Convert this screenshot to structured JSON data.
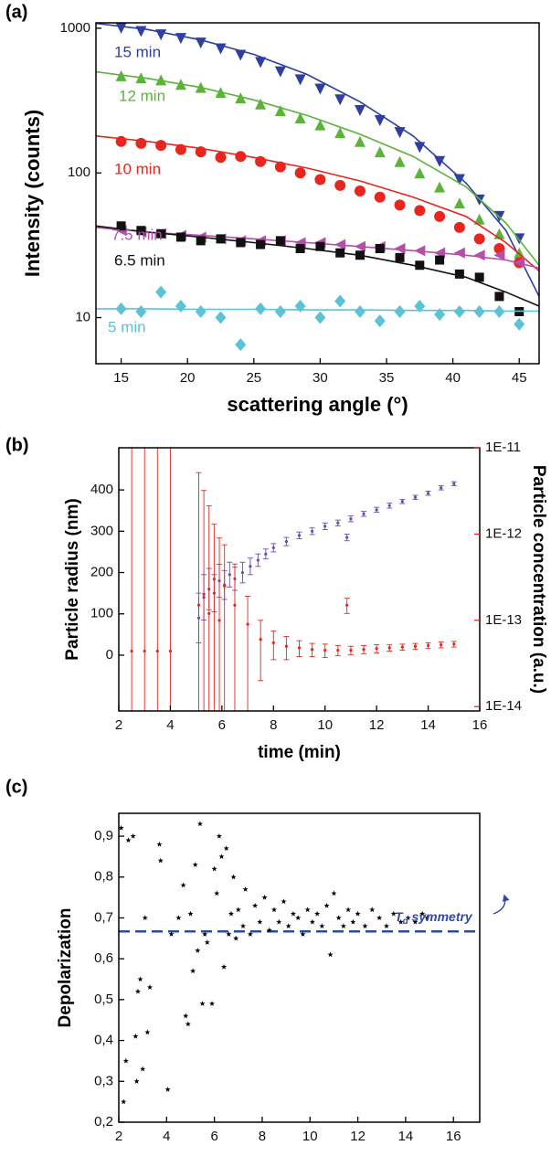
{
  "chart_data": [
    {
      "type": "scatter",
      "panel": "(a)",
      "xlabel": "scattering angle (°)",
      "ylabel": "Intensity (counts)",
      "xlim": [
        13.1,
        46.5
      ],
      "xticks": [
        15,
        20,
        25,
        30,
        35,
        40,
        45
      ],
      "ylim": [
        4.8,
        1090
      ],
      "ylog": true,
      "yticks": [
        10,
        100,
        1000
      ],
      "x": [
        15,
        16.5,
        18,
        19.5,
        21,
        22.5,
        24,
        25.5,
        27,
        28.5,
        30,
        31.5,
        33,
        34.5,
        36,
        37.5,
        39,
        40.5,
        42,
        43.5,
        45
      ],
      "fit_x": [
        13.1,
        17,
        21,
        25,
        29,
        33,
        37,
        41,
        44,
        46.5
      ],
      "series": [
        {
          "name": "15 min",
          "color": "#2f3f9f",
          "marker": "triangle-down",
          "values": [
            1000,
            950,
            900,
            850,
            790,
            720,
            650,
            580,
            500,
            440,
            380,
            320,
            270,
            230,
            190,
            150,
            120,
            90,
            65,
            50,
            35
          ],
          "fit": [
            1080,
            980,
            830,
            660,
            480,
            310,
            180,
            85,
            40,
            14
          ]
        },
        {
          "name": "12 min",
          "color": "#5bb33a",
          "marker": "triangle-up",
          "values": [
            470,
            455,
            440,
            410,
            390,
            360,
            330,
            300,
            270,
            240,
            215,
            190,
            165,
            140,
            120,
            100,
            80,
            62,
            48,
            38,
            28
          ],
          "fit": [
            500,
            450,
            390,
            320,
            250,
            185,
            130,
            80,
            45,
            23
          ]
        },
        {
          "name": "10 min",
          "color": "#e8261e",
          "marker": "circle",
          "values": [
            165,
            160,
            155,
            145,
            140,
            128,
            130,
            120,
            110,
            100,
            90,
            82,
            75,
            68,
            60,
            55,
            50,
            42,
            35,
            30,
            24
          ],
          "fit": [
            180,
            165,
            148,
            128,
            108,
            88,
            68,
            50,
            33,
            21
          ]
        },
        {
          "name": "7.5 min",
          "color": "#b54ea8",
          "marker": "triangle-left",
          "values": [
            40,
            39,
            38,
            37,
            36,
            35,
            34,
            34,
            34,
            33,
            33,
            32,
            31,
            31,
            30,
            29,
            28,
            28,
            27,
            27,
            24
          ],
          "fit": [
            42,
            39,
            37,
            35,
            33,
            31,
            29,
            27,
            25,
            22
          ]
        },
        {
          "name": "6.5 min",
          "color": "#111111",
          "marker": "square",
          "values": [
            43,
            40,
            38,
            36,
            34,
            35,
            33,
            32,
            34,
            30,
            31,
            28,
            27,
            30,
            26,
            23,
            25,
            20,
            19,
            14,
            11
          ],
          "fit": [
            43,
            39,
            36,
            33,
            30,
            27,
            23,
            19,
            15,
            12
          ]
        },
        {
          "name": "5 min",
          "color": "#5cc3d6",
          "marker": "diamond",
          "values": [
            11.5,
            11,
            15,
            12,
            11,
            10,
            6.5,
            11.5,
            11,
            12,
            10,
            13,
            11,
            9.5,
            11,
            12,
            10.5,
            11,
            11,
            11,
            9
          ],
          "fit": [
            11.5,
            11.5,
            11.4,
            11.4,
            11.3,
            11.3,
            11.2,
            11.2,
            11.1,
            11.1
          ]
        }
      ]
    },
    {
      "type": "errorbar",
      "panel": "(b)",
      "xlabel": "time (min)",
      "ylabel": "Particle radius (nm)",
      "y2label": "Particle concentration (a.u.)",
      "xlim": [
        2,
        16
      ],
      "xticks": [
        2,
        4,
        6,
        8,
        10,
        12,
        14,
        16
      ],
      "ylim": [
        -135,
        502
      ],
      "yticks": [
        0,
        100,
        200,
        300,
        400
      ],
      "y2lim": [
        8.9e-15,
        1e-11
      ],
      "y2log": true,
      "y2ticks": [
        {
          "value": 1e-14,
          "label": "1E-14"
        },
        {
          "value": 1e-13,
          "label": "1E-13"
        },
        {
          "value": 1e-12,
          "label": "1E-12"
        },
        {
          "value": 1e-11,
          "label": "1E-11"
        }
      ],
      "series": [
        {
          "color": "#6a4bb5",
          "axis": "y",
          "x": [
            5.1,
            5.3,
            5.5,
            5.7,
            5.9,
            6.1,
            6.3,
            6.5,
            6.8,
            7.1,
            7.4,
            7.7,
            8,
            8.5,
            9,
            9.5,
            10,
            10.5,
            10.85,
            11,
            11.5,
            12,
            12.5,
            13,
            13.5,
            14,
            14.5,
            15
          ],
          "values": [
            90,
            140,
            160,
            150,
            180,
            170,
            195,
            185,
            200,
            215,
            230,
            245,
            260,
            275,
            290,
            300,
            312,
            320,
            285,
            330,
            342,
            352,
            362,
            372,
            382,
            392,
            405,
            415
          ],
          "errors": [
            60,
            55,
            50,
            45,
            40,
            35,
            30,
            28,
            25,
            20,
            15,
            12,
            10,
            10,
            8,
            8,
            8,
            7,
            8,
            7,
            6,
            6,
            6,
            5,
            5,
            5,
            5,
            5
          ]
        },
        {
          "color": "#e8261e",
          "axis": "y2",
          "x": [
            2.5,
            3,
            3.5,
            4,
            5.1,
            5.3,
            5.5,
            5.7,
            5.9,
            6.1,
            6.5,
            7,
            7.5,
            8,
            8.5,
            9,
            9.5,
            10,
            10.5,
            10.85,
            11,
            11.5,
            12,
            12.5,
            13,
            13.5,
            14,
            14.5,
            15
          ],
          "values": [
            4.4e-14,
            4.4e-14,
            4.4e-14,
            4.4e-14,
            1.5e-13,
            2e-13,
            1.2e-13,
            3e-13,
            1e-13,
            2.5e-13,
            1.5e-13,
            9e-14,
            6e-14,
            5.5e-14,
            5e-14,
            4.8e-14,
            4.6e-14,
            4.5e-14,
            4.5e-14,
            1.5e-13,
            4.5e-14,
            4.6e-14,
            4.7e-14,
            4.8e-14,
            4.9e-14,
            5e-14,
            5.1e-14,
            5.2e-14,
            5.3e-14
          ],
          "errors": [
            1e-11,
            1e-11,
            1e-11,
            1e-11,
            5e-12,
            3e-12,
            2e-12,
            1e-12,
            8e-13,
            5e-13,
            3e-13,
            1e-13,
            4e-14,
            2e-14,
            1.5e-14,
            1e-14,
            8e-15,
            8e-15,
            6e-15,
            3e-14,
            5e-15,
            5e-15,
            5e-15,
            4e-15,
            4e-15,
            4e-15,
            4e-15,
            4e-15,
            4e-15
          ]
        }
      ]
    },
    {
      "type": "scatter",
      "panel": "(c)",
      "xlabel": "time (min)",
      "ylabel": "Depolarization",
      "xlim": [
        2,
        17.1
      ],
      "xticks": [
        2,
        4,
        6,
        8,
        10,
        12,
        14,
        16
      ],
      "ylim": [
        0.2,
        0.956
      ],
      "yticks": [
        {
          "value": 0.2,
          "label": "0,2"
        },
        {
          "value": 0.3,
          "label": "0,3"
        },
        {
          "value": 0.4,
          "label": "0,4"
        },
        {
          "value": 0.5,
          "label": "0,5"
        },
        {
          "value": 0.6,
          "label": "0,6"
        },
        {
          "value": 0.7,
          "label": "0,7"
        },
        {
          "value": 0.8,
          "label": "0,8"
        },
        {
          "value": 0.9,
          "label": "0,9"
        }
      ],
      "hline": {
        "value": 0.667,
        "color": "#2f4aa0",
        "text": "T",
        "subscript": "d",
        "suffix": " symmetry"
      },
      "x": [
        2.1,
        2.2,
        2.3,
        2.4,
        2.6,
        2.7,
        2.75,
        2.8,
        2.9,
        3,
        3.1,
        3.2,
        3.3,
        3.7,
        3.75,
        4.05,
        4.2,
        4.5,
        4.7,
        4.8,
        4.9,
        5,
        5.1,
        5.2,
        5.3,
        5.4,
        5.5,
        5.6,
        5.7,
        5.8,
        5.9,
        6,
        6.1,
        6.2,
        6.3,
        6.4,
        6.5,
        6.6,
        6.7,
        6.8,
        6.9,
        7,
        7.2,
        7.3,
        7.5,
        7.7,
        7.9,
        8.1,
        8.3,
        8.5,
        8.7,
        8.9,
        9.1,
        9.3,
        9.5,
        9.7,
        9.9,
        10.1,
        10.3,
        10.5,
        10.7,
        10.85,
        11,
        11.2,
        11.4,
        11.6,
        11.8,
        12,
        12.3,
        12.6,
        12.9,
        13.2,
        13.5,
        13.8,
        14.1,
        14.4,
        14.7,
        14.9
      ],
      "series": [
        {
          "color": "#000000",
          "marker": "star",
          "values": [
            0.92,
            0.25,
            0.35,
            0.89,
            0.9,
            0.41,
            0.3,
            0.52,
            0.55,
            0.33,
            0.7,
            0.42,
            0.53,
            0.88,
            0.84,
            0.28,
            0.66,
            0.7,
            0.78,
            0.46,
            0.44,
            0.71,
            0.57,
            0.83,
            0.62,
            0.93,
            0.49,
            0.66,
            0.64,
            0.96,
            0.49,
            0.82,
            0.76,
            0.9,
            0.85,
            0.58,
            0.87,
            0.66,
            0.71,
            0.8,
            0.65,
            0.72,
            0.68,
            0.77,
            0.66,
            0.73,
            0.69,
            0.75,
            0.67,
            0.72,
            0.69,
            0.74,
            0.68,
            0.71,
            0.7,
            0.66,
            0.72,
            0.69,
            0.71,
            0.68,
            0.73,
            0.61,
            0.76,
            0.7,
            0.68,
            0.72,
            0.69,
            0.71,
            0.68,
            0.72,
            0.7,
            0.68,
            0.71,
            0.69,
            0.7,
            0.69,
            0.71,
            0.7
          ]
        }
      ]
    }
  ]
}
